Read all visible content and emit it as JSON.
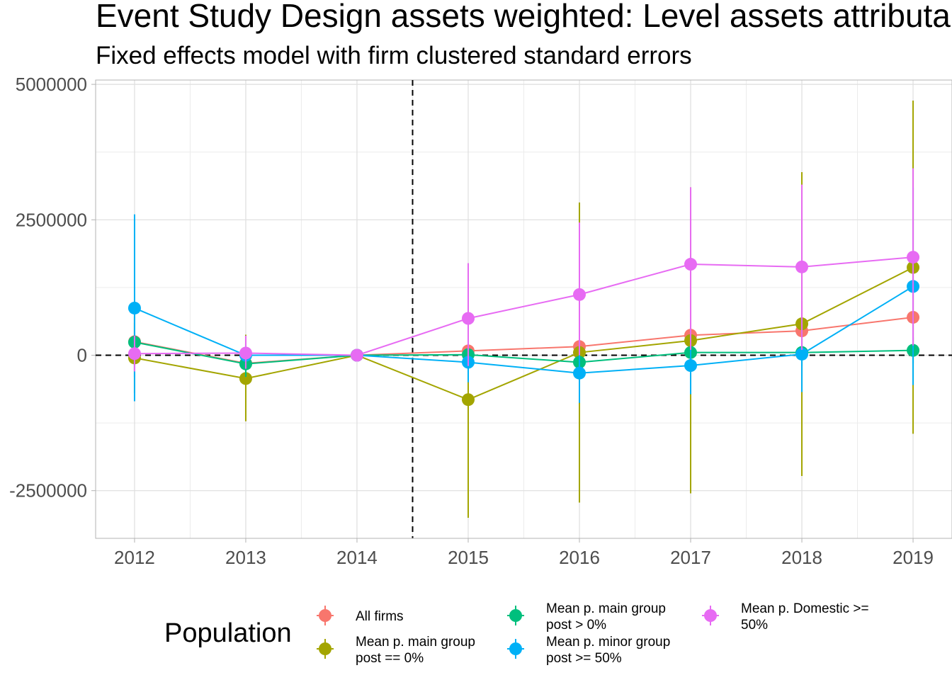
{
  "chart_data": {
    "type": "line",
    "title": "Event Study Design assets weighted: Level assets attributable to main group",
    "subtitle": "Fixed effects model with firm clustered standard errors",
    "xlabel": "",
    "ylabel": "",
    "x": [
      2012,
      2013,
      2014,
      2015,
      2016,
      2017,
      2018,
      2019
    ],
    "x_ticks": [
      "2012",
      "2013",
      "2014",
      "2015",
      "2016",
      "2017",
      "2018",
      "2019"
    ],
    "xlim": [
      2011.65,
      2019.35
    ],
    "y_ticks": [
      5000000,
      2500000,
      0,
      -2500000
    ],
    "y_tick_labels": [
      "5000000",
      "2500000",
      "0",
      "-2500000"
    ],
    "ylim": [
      -3380000,
      5080000
    ],
    "grid": true,
    "vline_x": 2014.5,
    "hline_y": 0,
    "legend_title": "Population",
    "legend_position": "bottom",
    "series": [
      {
        "name": "All firms",
        "legend_lines": [
          "All firms"
        ],
        "color": "#F8766D",
        "values": [
          250000,
          -150000,
          0,
          80000,
          160000,
          370000,
          450000,
          700000
        ],
        "lower": [
          -200000,
          -300000,
          0,
          -250000,
          -300000,
          -200000,
          -100000,
          200000
        ],
        "upper": [
          700000,
          100000,
          0,
          400000,
          600000,
          900000,
          1000000,
          1200000
        ]
      },
      {
        "name": "Mean p. main group post == 0%",
        "legend_lines": [
          "Mean p. main group",
          "post == 0%"
        ],
        "color": "#A3A500",
        "values": [
          -50000,
          -430000,
          0,
          -820000,
          50000,
          270000,
          580000,
          1620000
        ],
        "lower": [
          -700000,
          -1220000,
          0,
          -3000000,
          -2720000,
          -2550000,
          -2230000,
          -1450000
        ],
        "upper": [
          600000,
          380000,
          0,
          1700000,
          2820000,
          3100000,
          3380000,
          4700000
        ]
      },
      {
        "name": "Mean p. main group post > 0%",
        "legend_lines": [
          "Mean p. main group",
          "post > 0%"
        ],
        "color": "#00BF7D",
        "values": [
          240000,
          -160000,
          0,
          10000,
          -130000,
          50000,
          50000,
          90000
        ],
        "lower": [
          -400000,
          -400000,
          0,
          -300000,
          -500000,
          -200000,
          -200000,
          -150000
        ],
        "upper": [
          880000,
          80000,
          0,
          320000,
          240000,
          300000,
          300000,
          330000
        ]
      },
      {
        "name": "Mean p. minor group post >= 50%",
        "legend_lines": [
          "Mean p. minor group",
          "post >= 50%"
        ],
        "color": "#00B0F6",
        "values": [
          870000,
          0,
          0,
          -130000,
          -330000,
          -190000,
          20000,
          1270000
        ],
        "lower": [
          -850000,
          -200000,
          0,
          -500000,
          -880000,
          -720000,
          -680000,
          -550000
        ],
        "upper": [
          2600000,
          200000,
          0,
          250000,
          220000,
          350000,
          700000,
          3100000
        ]
      },
      {
        "name": "Mean p. Domestic >= 50%",
        "legend_lines": [
          "Mean p. Domestic >=",
          "50%"
        ],
        "color": "#E76BF3",
        "values": [
          30000,
          40000,
          0,
          680000,
          1120000,
          1680000,
          1630000,
          1810000
        ],
        "lower": [
          -300000,
          -250000,
          0,
          -200000,
          0,
          100000,
          100000,
          180000
        ],
        "upper": [
          360000,
          360000,
          0,
          1700000,
          2450000,
          3100000,
          3150000,
          3450000
        ]
      }
    ]
  }
}
